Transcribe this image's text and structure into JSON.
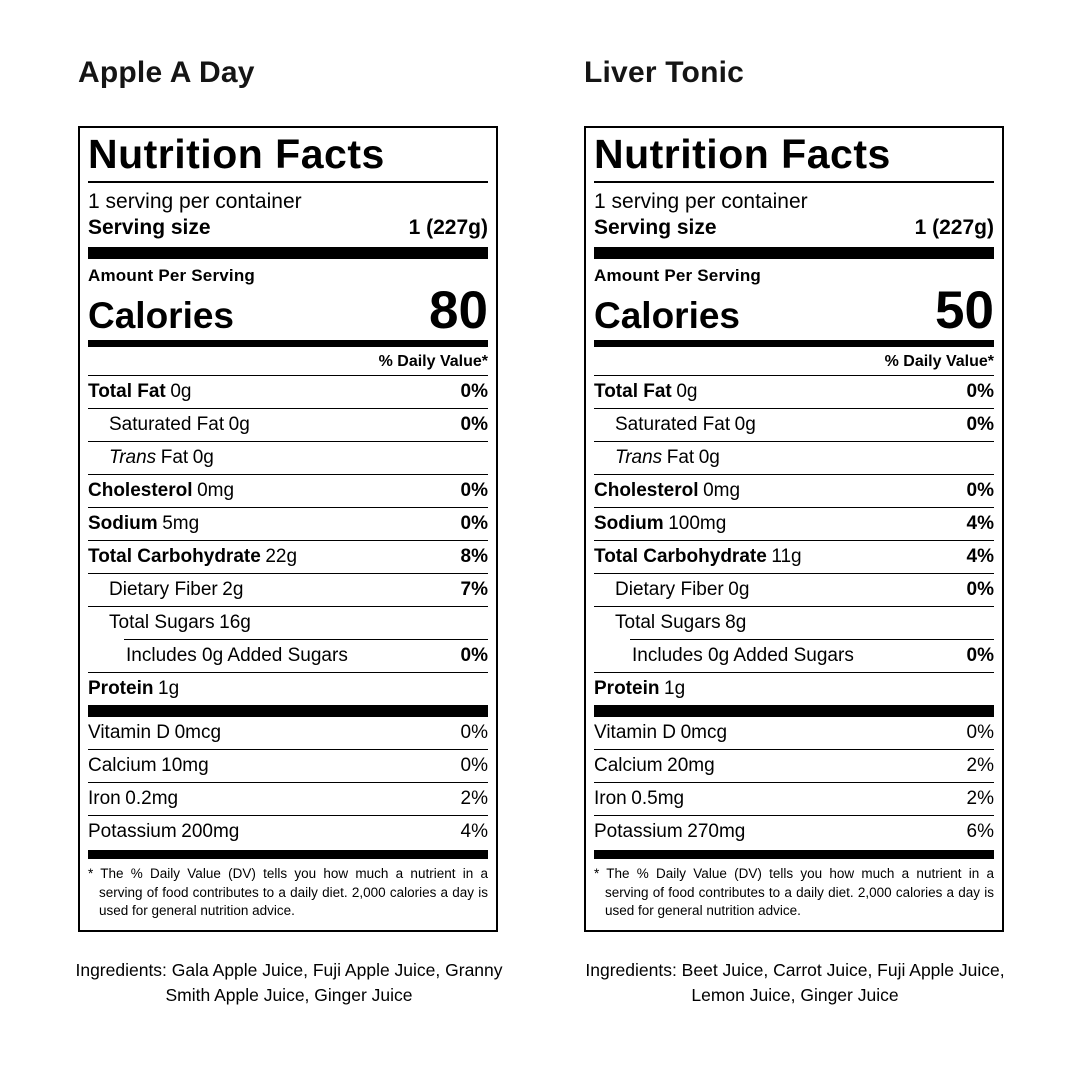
{
  "colors": {
    "text": "#000000",
    "background": "#ffffff",
    "rule": "#000000"
  },
  "labels": [
    {
      "title": "Apple A Day",
      "heading": "Nutrition Facts",
      "servings_per_container": "1 serving per container",
      "serving_size_label": "Serving size",
      "serving_size_value": "1 (227g)",
      "amount_per_serving": "Amount Per Serving",
      "calories_label": "Calories",
      "calories_value": "80",
      "daily_value_header": "% Daily Value*",
      "rows": [
        {
          "name": "Total Fat",
          "amount": "0g",
          "dv": "0%",
          "bold": true,
          "indent": 0
        },
        {
          "name": "Saturated Fat",
          "amount": "0g",
          "dv": "0%",
          "bold": false,
          "indent": 1
        },
        {
          "italic_prefix": "Trans",
          "name": "Fat",
          "amount": "0g",
          "dv": "",
          "bold": false,
          "indent": 1
        },
        {
          "name": "Cholesterol",
          "amount": "0mg",
          "dv": "0%",
          "bold": true,
          "indent": 0
        },
        {
          "name": "Sodium",
          "amount": "5mg",
          "dv": "0%",
          "bold": true,
          "indent": 0
        },
        {
          "name": "Total Carbohydrate",
          "amount": "22g",
          "dv": "8%",
          "bold": true,
          "indent": 0
        },
        {
          "name": "Dietary Fiber",
          "amount": "2g",
          "dv": "7%",
          "bold": false,
          "indent": 1
        },
        {
          "name": "Total Sugars",
          "amount": "16g",
          "dv": "",
          "bold": false,
          "indent": 1,
          "no_bottom_border": true
        },
        {
          "name": "Includes 0g Added Sugars",
          "amount": "",
          "dv": "0%",
          "bold": false,
          "indent": 2,
          "indented_divider_above": true
        },
        {
          "name": "Protein",
          "amount": "1g",
          "dv": "",
          "bold": true,
          "indent": 0
        }
      ],
      "vitamins": [
        {
          "name": "Vitamin D",
          "amount": "0mcg",
          "dv": "0%"
        },
        {
          "name": "Calcium",
          "amount": "10mg",
          "dv": "0%"
        },
        {
          "name": "Iron",
          "amount": "0.2mg",
          "dv": "2%"
        },
        {
          "name": "Potassium",
          "amount": "200mg",
          "dv": "4%"
        }
      ],
      "footnote": "* The % Daily Value (DV) tells you how much a nutrient in a serving of food contributes to a daily diet. 2,000 calories a day is used for general nutrition advice.",
      "ingredients": "Ingredients: Gala Apple Juice, Fuji Apple Juice, Granny Smith Apple Juice, Ginger Juice"
    },
    {
      "title": "Liver Tonic",
      "heading": "Nutrition Facts",
      "servings_per_container": "1 serving per container",
      "serving_size_label": "Serving size",
      "serving_size_value": "1 (227g)",
      "amount_per_serving": "Amount Per Serving",
      "calories_label": "Calories",
      "calories_value": "50",
      "daily_value_header": "% Daily Value*",
      "rows": [
        {
          "name": "Total Fat",
          "amount": "0g",
          "dv": "0%",
          "bold": true,
          "indent": 0
        },
        {
          "name": "Saturated Fat",
          "amount": "0g",
          "dv": "0%",
          "bold": false,
          "indent": 1
        },
        {
          "italic_prefix": "Trans",
          "name": "Fat",
          "amount": "0g",
          "dv": "",
          "bold": false,
          "indent": 1
        },
        {
          "name": "Cholesterol",
          "amount": "0mg",
          "dv": "0%",
          "bold": true,
          "indent": 0
        },
        {
          "name": "Sodium",
          "amount": "100mg",
          "dv": "4%",
          "bold": true,
          "indent": 0
        },
        {
          "name": "Total Carbohydrate",
          "amount": "11g",
          "dv": "4%",
          "bold": true,
          "indent": 0
        },
        {
          "name": "Dietary Fiber",
          "amount": "0g",
          "dv": "0%",
          "bold": false,
          "indent": 1
        },
        {
          "name": "Total Sugars",
          "amount": "8g",
          "dv": "",
          "bold": false,
          "indent": 1,
          "no_bottom_border": true
        },
        {
          "name": "Includes 0g Added Sugars",
          "amount": "",
          "dv": "0%",
          "bold": false,
          "indent": 2,
          "indented_divider_above": true
        },
        {
          "name": "Protein",
          "amount": "1g",
          "dv": "",
          "bold": true,
          "indent": 0
        }
      ],
      "vitamins": [
        {
          "name": "Vitamin D",
          "amount": "0mcg",
          "dv": "0%"
        },
        {
          "name": "Calcium",
          "amount": "20mg",
          "dv": "2%"
        },
        {
          "name": "Iron",
          "amount": "0.5mg",
          "dv": "2%"
        },
        {
          "name": "Potassium",
          "amount": "270mg",
          "dv": "6%"
        }
      ],
      "footnote": "* The % Daily Value (DV) tells you how much a nutrient in a serving of food contributes to a daily diet. 2,000 calories a day is used for general nutrition advice.",
      "ingredients": "Ingredients: Beet Juice, Carrot Juice, Fuji Apple Juice, Lemon Juice, Ginger Juice"
    }
  ]
}
